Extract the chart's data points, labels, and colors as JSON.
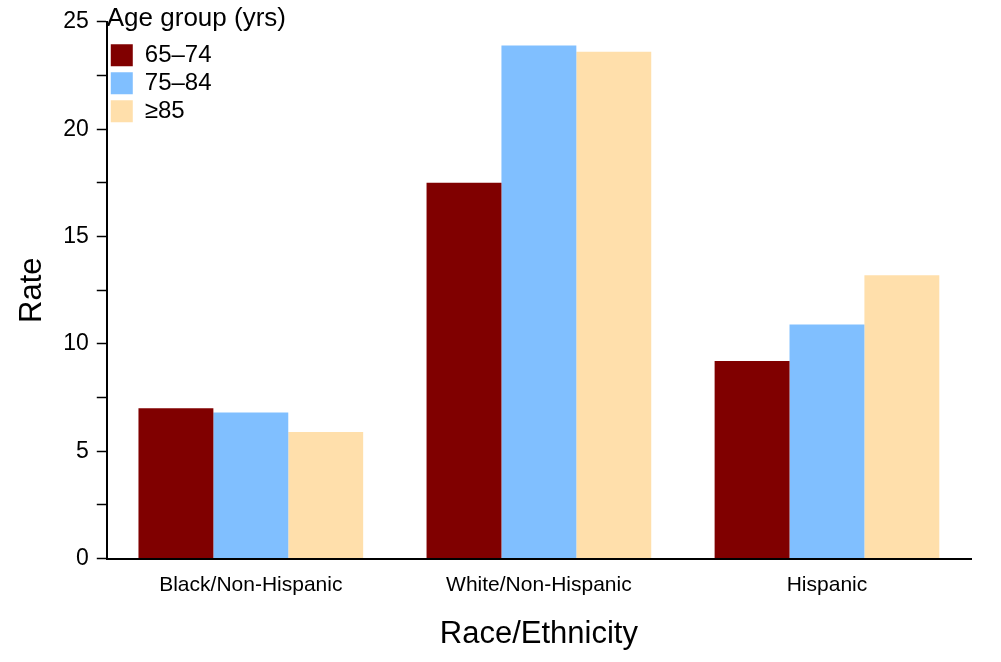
{
  "chart_data": {
    "type": "bar",
    "xlabel": "Race/Ethnicity",
    "ylabel": "Rate",
    "legend_title": "Age group (yrs)",
    "categories": [
      "Black/Non-Hispanic",
      "White/Non-Hispanic",
      "Hispanic"
    ],
    "series": [
      {
        "name": "65–74",
        "color": "#800000",
        "values": [
          7.0,
          17.5,
          9.2
        ]
      },
      {
        "name": "75–84",
        "color": "#80bfff",
        "values": [
          6.8,
          23.9,
          10.9
        ]
      },
      {
        "name": "≥85",
        "color": "#ffdfab",
        "values": [
          5.9,
          23.6,
          13.2
        ]
      }
    ],
    "ylim": [
      0,
      25
    ],
    "yticks": [
      0,
      {
        "value": 2.5,
        "label": null
      },
      5,
      {
        "value": 7.5,
        "label": null
      },
      10,
      {
        "value": 12.5,
        "label": null
      },
      15,
      {
        "value": 17.5,
        "label": null
      },
      20,
      {
        "value": 22.5,
        "label": null
      },
      25
    ],
    "grid": false,
    "legend": "top left"
  }
}
